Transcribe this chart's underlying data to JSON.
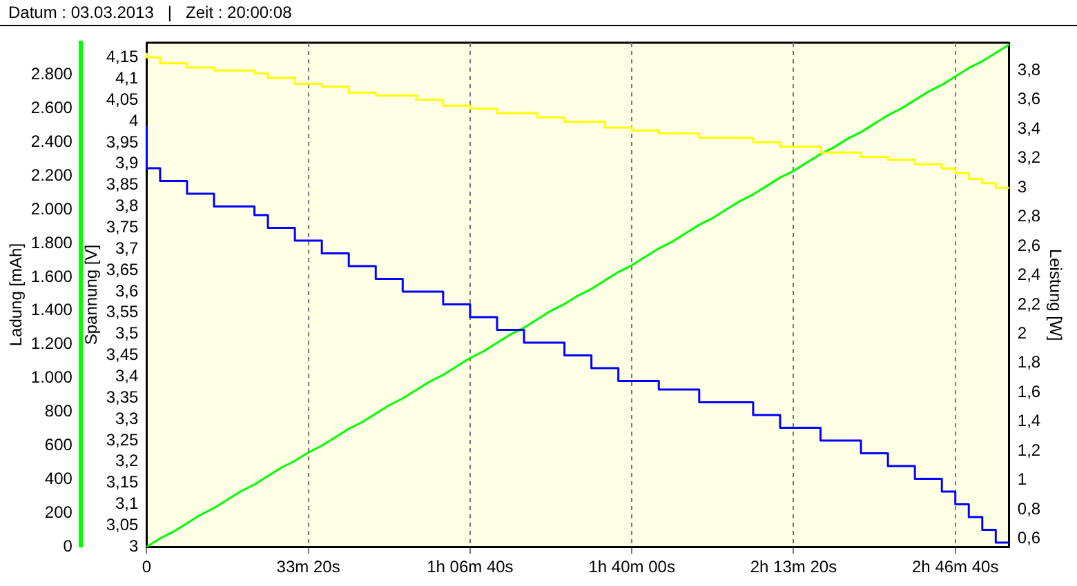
{
  "chart_data": {
    "type": "step",
    "title": "Datum : 03.03.2013   |   Zeit : 20:00:08",
    "ylabel": "Spannung [V]",
    "y2label": "Ladung [mAh]",
    "y3label": "Leistung [W]",
    "categories": [
      "0",
      null,
      null,
      null,
      null,
      null,
      null,
      null,
      null,
      null,
      null,
      null,
      "33m 20s",
      null,
      null,
      null,
      null,
      null,
      null,
      null,
      null,
      null,
      null,
      null,
      "1h 06m 40s",
      null,
      null,
      null,
      null,
      null,
      null,
      null,
      null,
      null,
      null,
      null,
      "1h 40m 00s",
      null,
      null,
      null,
      null,
      null,
      null,
      null,
      null,
      null,
      null,
      null,
      "2h 13m 20s",
      null,
      null,
      null,
      null,
      null,
      null,
      null,
      null,
      null,
      null,
      null,
      "2h 46m 40s",
      null,
      null,
      null,
      null
    ],
    "ylim": [
      3,
      4.185
    ],
    "yticks": [
      {
        "value": 3,
        "label": "3"
      },
      {
        "value": 3.05,
        "label": "3,05"
      },
      {
        "value": 3.1,
        "label": "3,1"
      },
      {
        "value": 3.15,
        "label": "3,15"
      },
      {
        "value": 3.2,
        "label": "3,2"
      },
      {
        "value": 3.25,
        "label": "3,25"
      },
      {
        "value": 3.3,
        "label": "3,3"
      },
      {
        "value": 3.35,
        "label": "3,35"
      },
      {
        "value": 3.4,
        "label": "3,4"
      },
      {
        "value": 3.45,
        "label": "3,45"
      },
      {
        "value": 3.5,
        "label": "3,5"
      },
      {
        "value": 3.55,
        "label": "3,55"
      },
      {
        "value": 3.6,
        "label": "3,6"
      },
      {
        "value": 3.65,
        "label": "3,65"
      },
      {
        "value": 3.7,
        "label": "3,7"
      },
      {
        "value": 3.75,
        "label": "3,75"
      },
      {
        "value": 3.8,
        "label": "3,8"
      },
      {
        "value": 3.85,
        "label": "3,85"
      },
      {
        "value": 3.9,
        "label": "3,9"
      },
      {
        "value": 3.95,
        "label": "3,95"
      },
      {
        "value": 4,
        "label": "4"
      },
      {
        "value": 4.05,
        "label": "4,05"
      },
      {
        "value": 4.1,
        "label": "4,1"
      },
      {
        "value": 4.15,
        "label": "4,15"
      }
    ],
    "y2lim": [
      0,
      2990
    ],
    "y2ticks": [
      {
        "value": 0,
        "label": "0"
      },
      {
        "value": 200,
        "label": "200"
      },
      {
        "value": 400,
        "label": "400"
      },
      {
        "value": 600,
        "label": "600"
      },
      {
        "value": 800,
        "label": "800"
      },
      {
        "value": 1000,
        "label": "1.000"
      },
      {
        "value": 1200,
        "label": "1.200"
      },
      {
        "value": 1400,
        "label": "1.400"
      },
      {
        "value": 1600,
        "label": "1.600"
      },
      {
        "value": 1800,
        "label": "1.800"
      },
      {
        "value": 2000,
        "label": "2.000"
      },
      {
        "value": 2200,
        "label": "2.200"
      },
      {
        "value": 2400,
        "label": "2.400"
      },
      {
        "value": 2600,
        "label": "2.600"
      },
      {
        "value": 2800,
        "label": "2.800"
      }
    ],
    "y3lim": [
      0.545,
      3.99
    ],
    "y3ticks": [
      {
        "value": 0.6,
        "label": "0,6"
      },
      {
        "value": 0.8,
        "label": "0,8"
      },
      {
        "value": 1,
        "label": "1"
      },
      {
        "value": 1.2,
        "label": "1,2"
      },
      {
        "value": 1.4,
        "label": "1,4"
      },
      {
        "value": 1.6,
        "label": "1,6"
      },
      {
        "value": 1.8,
        "label": "1,8"
      },
      {
        "value": 2,
        "label": "2"
      },
      {
        "value": 2.2,
        "label": "2,2"
      },
      {
        "value": 2.4,
        "label": "2,4"
      },
      {
        "value": 2.6,
        "label": "2,6"
      },
      {
        "value": 2.8,
        "label": "2,8"
      },
      {
        "value": 3,
        "label": "3"
      },
      {
        "value": 3.2,
        "label": "3,2"
      },
      {
        "value": 3.4,
        "label": "3,4"
      },
      {
        "value": 3.6,
        "label": "3,6"
      },
      {
        "value": 3.8,
        "label": "3,8"
      }
    ],
    "grid": "x",
    "legend": false,
    "series": [
      {
        "color": "#ffff00",
        "axis": "y3",
        "values": [
          3.92,
          3.89,
          3.85,
          3.85,
          3.82,
          3.82,
          3.8,
          3.8,
          3.8,
          3.78,
          3.75,
          3.75,
          3.71,
          3.71,
          3.69,
          3.69,
          3.65,
          3.65,
          3.63,
          3.63,
          3.63,
          3.6,
          3.6,
          3.56,
          3.56,
          3.54,
          3.54,
          3.51,
          3.51,
          3.51,
          3.48,
          3.48,
          3.45,
          3.45,
          3.45,
          3.41,
          3.41,
          3.39,
          3.39,
          3.37,
          3.37,
          3.37,
          3.34,
          3.34,
          3.34,
          3.34,
          3.31,
          3.31,
          3.28,
          3.28,
          3.28,
          3.24,
          3.24,
          3.24,
          3.21,
          3.21,
          3.19,
          3.19,
          3.16,
          3.16,
          3.13,
          3.1,
          3.06,
          3.03,
          3.0
        ]
      },
      {
        "color": "#0000ff",
        "axis": "y",
        "values": [
          3.99,
          3.89,
          3.86,
          3.86,
          3.83,
          3.83,
          3.8,
          3.8,
          3.8,
          3.78,
          3.75,
          3.75,
          3.72,
          3.72,
          3.69,
          3.69,
          3.66,
          3.66,
          3.63,
          3.63,
          3.6,
          3.6,
          3.6,
          3.57,
          3.57,
          3.54,
          3.54,
          3.51,
          3.51,
          3.48,
          3.48,
          3.48,
          3.45,
          3.45,
          3.42,
          3.42,
          3.39,
          3.39,
          3.39,
          3.37,
          3.37,
          3.37,
          3.34,
          3.34,
          3.34,
          3.34,
          3.31,
          3.31,
          3.28,
          3.28,
          3.28,
          3.25,
          3.25,
          3.25,
          3.22,
          3.22,
          3.19,
          3.19,
          3.16,
          3.16,
          3.13,
          3.1,
          3.07,
          3.04,
          3.01
        ]
      },
      {
        "type": "line",
        "color": "#00ff00",
        "axis": "y2",
        "values": [
          0,
          50,
          90,
          140,
          190,
          230,
          280,
          330,
          370,
          420,
          470,
          510,
          560,
          600,
          650,
          700,
          740,
          790,
          840,
          880,
          930,
          980,
          1020,
          1070,
          1120,
          1160,
          1210,
          1260,
          1300,
          1350,
          1400,
          1440,
          1490,
          1530,
          1580,
          1630,
          1670,
          1720,
          1770,
          1810,
          1860,
          1910,
          1950,
          2000,
          2050,
          2090,
          2140,
          2190,
          2230,
          2280,
          2330,
          2370,
          2420,
          2460,
          2510,
          2560,
          2600,
          2650,
          2700,
          2740,
          2790,
          2840,
          2880,
          2930,
          2980
        ]
      }
    ]
  }
}
